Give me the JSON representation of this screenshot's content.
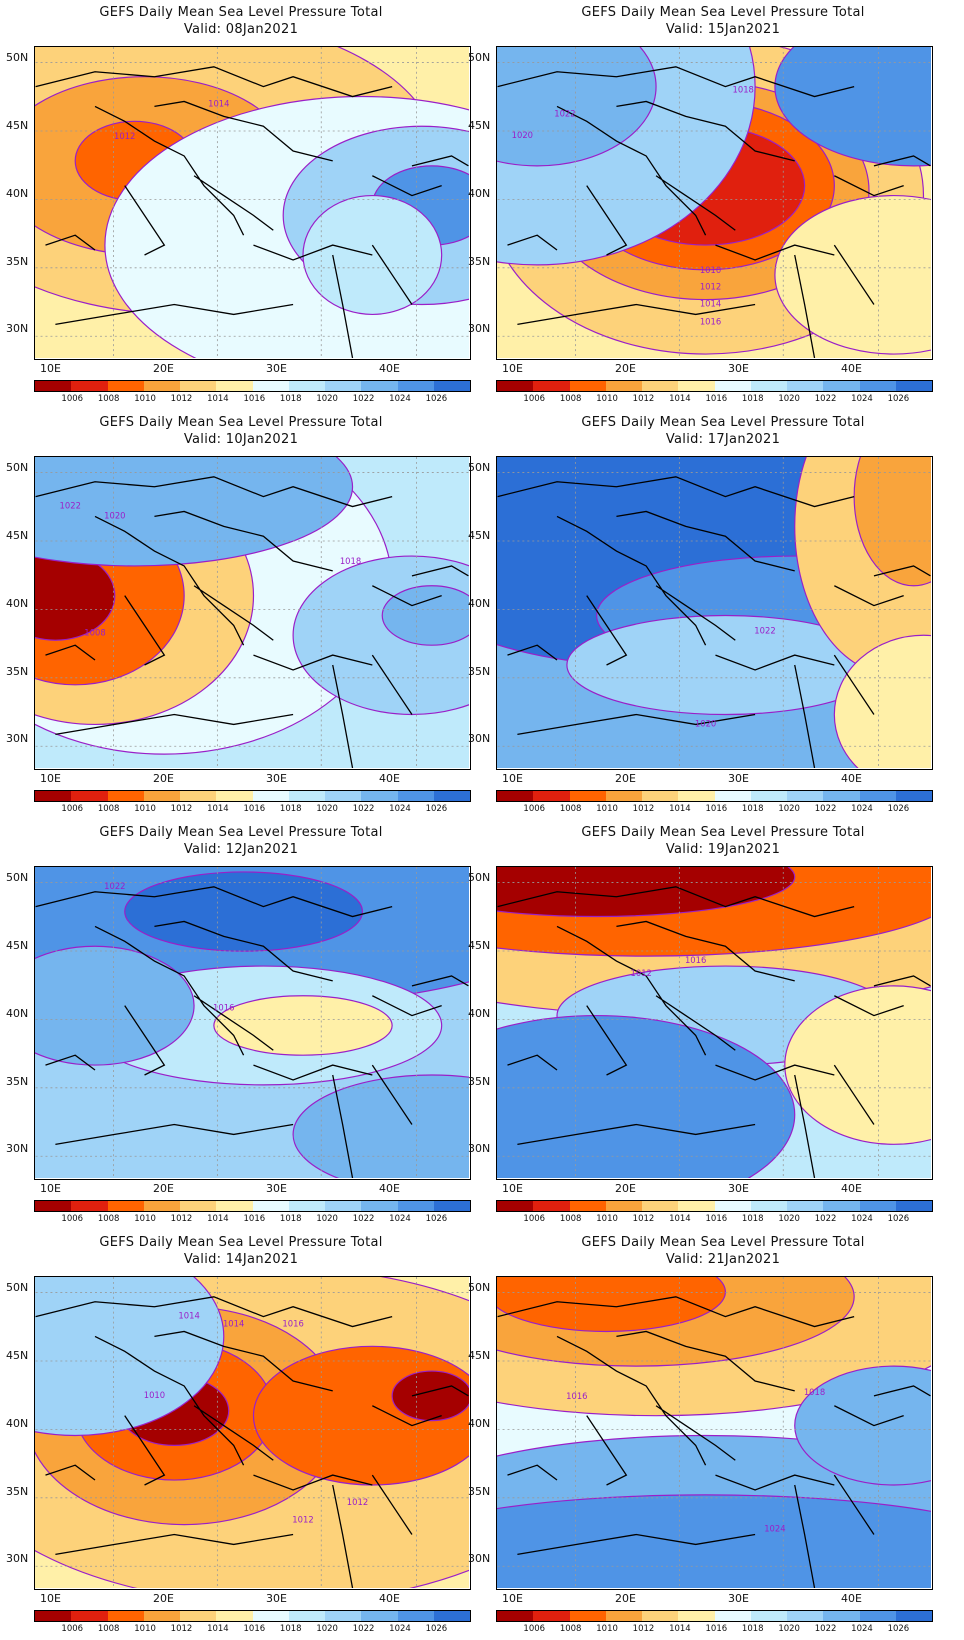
{
  "title": "GEFS Daily Mean Sea Level Pressure Total",
  "colorbar": {
    "labels": [
      "1006",
      "1008",
      "1010",
      "1012",
      "1014",
      "1016",
      "1018",
      "1020",
      "1022",
      "1024",
      "1026"
    ],
    "colors": [
      "#a50000",
      "#e0200e",
      "#ff6400",
      "#f9a43c",
      "#fdd27a",
      "#fff0a8",
      "#e8fbff",
      "#bfeafb",
      "#9fd3f7",
      "#75b5ee",
      "#4f94e6",
      "#2c6fd6"
    ]
  },
  "axes": {
    "lat": [
      "50N",
      "45N",
      "40N",
      "35N",
      "30N"
    ],
    "lon": [
      "10E",
      "20E",
      "30E",
      "40E"
    ]
  },
  "panels": [
    {
      "valid": "Valid: 08Jan2021",
      "contour_labels": [
        "1014",
        "1012"
      ]
    },
    {
      "valid": "Valid: 15Jan2021",
      "contour_labels": [
        "1018",
        "1022",
        "1020",
        "1010",
        "1012",
        "1014",
        "1016"
      ]
    },
    {
      "valid": "Valid: 10Jan2021",
      "contour_labels": [
        "1022",
        "1020",
        "1018",
        "1008"
      ]
    },
    {
      "valid": "Valid: 17Jan2021",
      "contour_labels": [
        "1022",
        "1020"
      ]
    },
    {
      "valid": "Valid: 12Jan2021",
      "contour_labels": [
        "1022",
        "1016"
      ]
    },
    {
      "valid": "Valid: 19Jan2021",
      "contour_labels": [
        "1016",
        "1012"
      ]
    },
    {
      "valid": "Valid: 14Jan2021",
      "contour_labels": [
        "1014",
        "1016",
        "1010",
        "1012",
        "1012",
        "1014"
      ]
    },
    {
      "valid": "Valid: 21Jan2021",
      "contour_labels": [
        "1016",
        "1018",
        "1024"
      ]
    }
  ]
}
